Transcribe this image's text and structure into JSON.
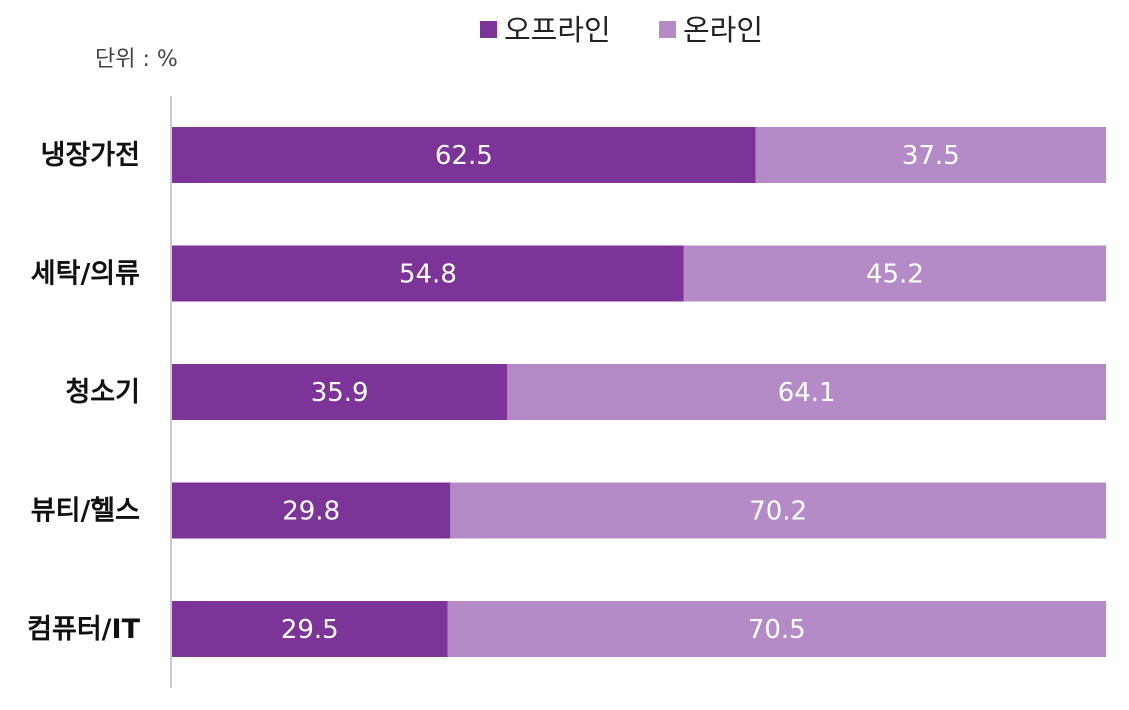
{
  "unit_label": "단위 : %",
  "colors": {
    "offline": "#7d3498",
    "online": "#b48bc6",
    "axis": "#cccccc"
  },
  "chart_data": {
    "type": "bar",
    "orientation": "horizontal",
    "stacked": true,
    "categories": [
      "냉장가전",
      "세탁/의류",
      "청소기",
      "뷰티/헬스",
      "컴퓨터/IT"
    ],
    "series": [
      {
        "name": "오프라인",
        "values": [
          62.5,
          54.8,
          35.9,
          29.8,
          29.5
        ]
      },
      {
        "name": "온라인",
        "values": [
          37.5,
          45.2,
          64.1,
          70.2,
          70.5
        ]
      }
    ],
    "xlim": [
      0,
      100
    ],
    "legend_position": "top-center",
    "grid": false,
    "unit": "%"
  }
}
